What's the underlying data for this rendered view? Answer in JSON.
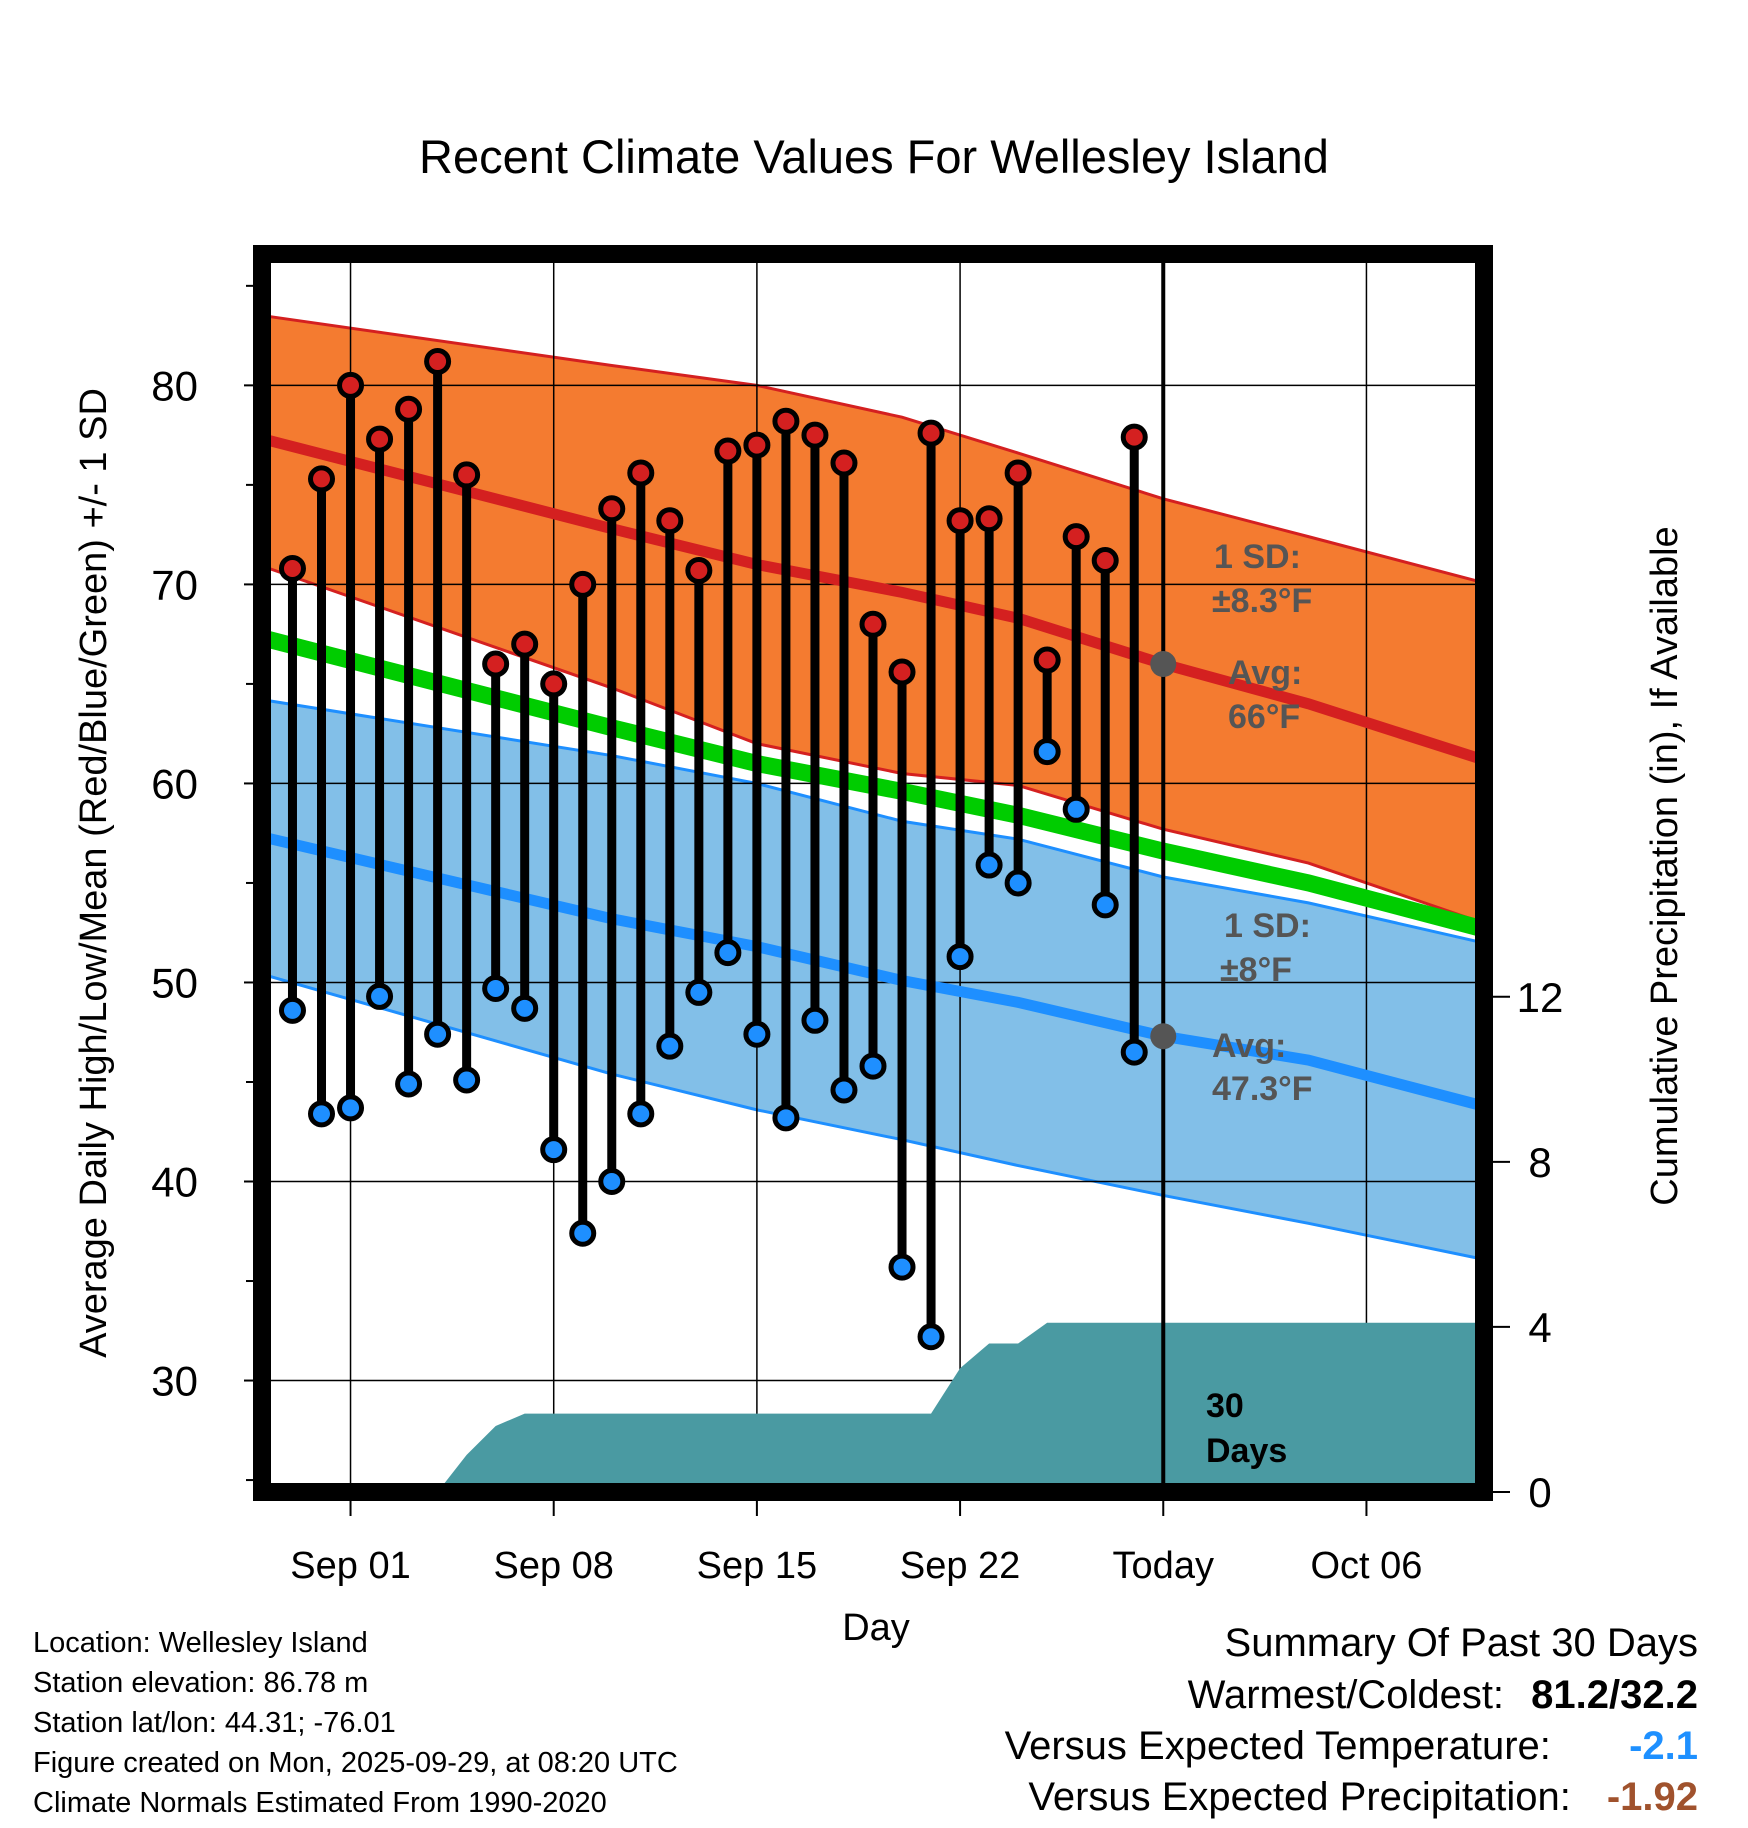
{
  "chart_data": {
    "type": "line",
    "title": "Recent Climate Values For Wellesley Island",
    "xlabel": "Day",
    "ylabel": "Average Daily High/Low/Mean (Red/Blue/Green) +/- 1 SD",
    "y2label": "Cumulative Precipitation (in), If Available",
    "xlim": [
      -3.05,
      39.05
    ],
    "ylim": [
      24.4,
      86.6
    ],
    "y2lim": [
      0,
      30
    ],
    "x_ticks": [
      {
        "x": 0,
        "label": "Sep 01"
      },
      {
        "x": 7,
        "label": "Sep 08"
      },
      {
        "x": 14,
        "label": "Sep 15"
      },
      {
        "x": 21,
        "label": "Sep 22"
      },
      {
        "x": 28,
        "label": "Today"
      },
      {
        "x": 35,
        "label": "Oct 06"
      }
    ],
    "y_ticks": [
      30,
      40,
      50,
      60,
      70,
      80
    ],
    "y2_ticks": [
      0,
      4,
      8,
      12
    ],
    "today_x": 28,
    "normals": {
      "x": [
        -3,
        9,
        14,
        19,
        23,
        28,
        33,
        39
      ],
      "high_avg": [
        77.3,
        72.8,
        71.0,
        69.6,
        68.3,
        66.0,
        64.0,
        61.2
      ],
      "high_upper": [
        83.5,
        81.0,
        80.0,
        78.4,
        76.6,
        74.3,
        72.4,
        70.1
      ],
      "high_lower": [
        70.9,
        64.8,
        62.0,
        60.5,
        59.9,
        57.7,
        56.0,
        53.0
      ],
      "mean": [
        67.3,
        62.8,
        61.0,
        59.6,
        58.4,
        56.6,
        55.0,
        52.7
      ],
      "low_avg": [
        57.3,
        53.2,
        51.8,
        50.1,
        49.0,
        47.3,
        46.1,
        43.8
      ],
      "low_upper": [
        64.2,
        61.4,
        60.0,
        58.1,
        57.2,
        55.3,
        54.0,
        52.0
      ],
      "low_lower": [
        50.4,
        45.4,
        43.6,
        42.1,
        40.8,
        39.3,
        37.9,
        36.1
      ]
    },
    "series": [
      {
        "name": "Daily High",
        "color": "#d42020",
        "x": [
          -2,
          -1,
          0,
          1,
          2,
          3,
          4,
          5,
          6,
          7,
          8,
          9,
          10,
          11,
          12,
          13,
          14,
          15,
          16,
          17,
          18,
          19,
          20,
          21,
          22,
          23,
          24,
          25,
          26,
          27
        ],
        "values": [
          70.8,
          75.3,
          80.0,
          77.3,
          78.8,
          81.2,
          75.5,
          66.0,
          67.0,
          65.0,
          70.0,
          73.8,
          75.6,
          73.2,
          70.7,
          76.7,
          77.0,
          78.2,
          77.5,
          76.1,
          68.0,
          65.6,
          77.6,
          73.2,
          73.3,
          75.6,
          66.2,
          72.4,
          71.2,
          77.4
        ]
      },
      {
        "name": "Daily Low",
        "color": "#2b8fe8",
        "x": [
          -2,
          -1,
          0,
          1,
          2,
          3,
          4,
          5,
          6,
          7,
          8,
          9,
          10,
          11,
          12,
          13,
          14,
          15,
          16,
          17,
          18,
          19,
          20,
          21,
          22,
          23,
          24,
          25,
          26,
          27
        ],
        "values": [
          48.6,
          43.4,
          43.7,
          49.3,
          44.9,
          47.4,
          45.1,
          49.7,
          48.7,
          41.6,
          37.4,
          40.0,
          43.4,
          46.8,
          49.5,
          51.5,
          47.4,
          43.2,
          48.1,
          44.6,
          45.8,
          35.7,
          32.2,
          51.3,
          55.9,
          55.0,
          61.6,
          58.7,
          53.9,
          46.5
        ]
      }
    ],
    "precipitation": {
      "x": [
        -3,
        0,
        3,
        4,
        5,
        6,
        20,
        21,
        22,
        23,
        24,
        39
      ],
      "values": [
        0,
        0,
        0,
        0.9,
        1.6,
        1.9,
        1.9,
        3.0,
        3.6,
        3.6,
        4.1,
        4.1
      ]
    },
    "annotations": {
      "high_sd_label": "1 SD:",
      "high_sd_value": "±8.3°F",
      "high_avg_label": "Avg:",
      "high_avg_value": "66°F",
      "high_avg_marker": 66.0,
      "low_sd_label": "1 SD:",
      "low_sd_value": "±8°F",
      "low_avg_label": "Avg:",
      "low_avg_value": "47.3°F",
      "low_avg_marker": 47.3,
      "precip_days_line1": "30",
      "precip_days_line2": "Days"
    }
  },
  "info": {
    "location": "Location: Wellesley Island",
    "elevation": "Station elevation: 86.78 m",
    "latlon": "Station lat/lon: 44.31; -76.01",
    "created": "Figure created on Mon, 2025-09-29, at 08:20 UTC",
    "normals": "Climate Normals Estimated From 1990-2020"
  },
  "summary": {
    "title": "Summary Of Past 30 Days",
    "warmest_coldest_label": "Warmest/Coldest:",
    "warmest_coldest_value": "81.2/32.2",
    "temp_label": "Versus Expected Temperature:",
    "temp_value": "-2.1",
    "precip_label": "Versus Expected Precipitation:",
    "precip_value": "-1.92"
  },
  "colors": {
    "high_band": "#f47b30",
    "high_line": "#d42020",
    "low_band": "#82bfe8",
    "low_line": "#1e8fff",
    "mean_line": "#00cc00",
    "precip": "#4a9aa2",
    "marker_gray": "#555555",
    "annotation_text": "#555555"
  }
}
